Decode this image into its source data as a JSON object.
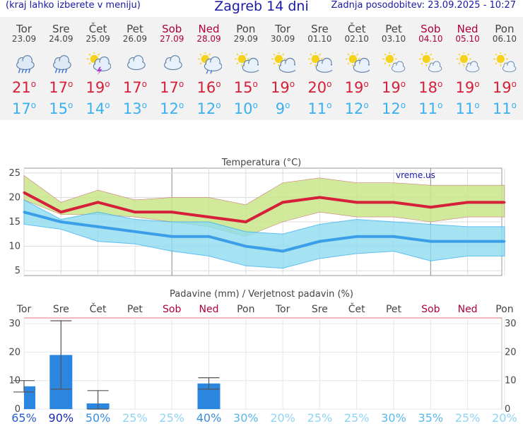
{
  "header": {
    "left": "(kraj lahko izberete v meniju)",
    "title": "Zagreb 14 dni",
    "right": "Zadnja posodobitev: 23.09.2025 - 10:27"
  },
  "days": [
    {
      "name": "Tor",
      "date": "23.09",
      "icon": "rain-cloud-icon",
      "tmax": "21",
      "tmin": "17",
      "weekend": false
    },
    {
      "name": "Sre",
      "date": "24.09",
      "icon": "rain-cloud-icon",
      "tmax": "17",
      "tmin": "15",
      "weekend": false
    },
    {
      "name": "Čet",
      "date": "25.09",
      "icon": "thunder-sun-cloud-icon",
      "tmax": "19",
      "tmin": "14",
      "weekend": false
    },
    {
      "name": "Pet",
      "date": "26.09",
      "icon": "cloud-icon",
      "tmax": "17",
      "tmin": "13",
      "weekend": false
    },
    {
      "name": "Sob",
      "date": "27.09",
      "icon": "cloud-icon",
      "tmax": "17",
      "tmin": "12",
      "weekend": true
    },
    {
      "name": "Ned",
      "date": "28.09",
      "icon": "sun-cloud-rain-icon",
      "tmax": "16",
      "tmin": "12",
      "weekend": true
    },
    {
      "name": "Pon",
      "date": "29.09",
      "icon": "sun-cloud-icon",
      "tmax": "15",
      "tmin": "10",
      "weekend": false
    },
    {
      "name": "Tor",
      "date": "30.09",
      "icon": "sun-cloud-icon",
      "tmax": "19",
      "tmin": "9",
      "weekend": false
    },
    {
      "name": "Sre",
      "date": "01.10",
      "icon": "sun-cloud-icon",
      "tmax": "20",
      "tmin": "11",
      "weekend": false
    },
    {
      "name": "Čet",
      "date": "02.10",
      "icon": "sun-cloud-icon",
      "tmax": "19",
      "tmin": "12",
      "weekend": false
    },
    {
      "name": "Pet",
      "date": "03.10",
      "icon": "sun-partly-cloud-icon",
      "tmax": "19",
      "tmin": "12",
      "weekend": false
    },
    {
      "name": "Sob",
      "date": "04.10",
      "icon": "sun-partly-cloud-icon",
      "tmax": "18",
      "tmin": "11",
      "weekend": true
    },
    {
      "name": "Ned",
      "date": "05.10",
      "icon": "sun-partly-cloud-icon",
      "tmax": "19",
      "tmin": "11",
      "weekend": true
    },
    {
      "name": "Pon",
      "date": "06.10",
      "icon": "sun-partly-cloud-icon",
      "tmax": "19",
      "tmin": "11",
      "weekend": false
    }
  ],
  "colors": {
    "max": "#d6203a",
    "min": "#3ab0f0",
    "weekend": "#b0003a",
    "bar": "#2b86e0",
    "text": "#1a1aa6"
  },
  "chart_data": [
    {
      "type": "line",
      "title": "Temperatura (°C)",
      "watermark": "vreme.us",
      "ylim": [
        4,
        26
      ],
      "yticks": [
        5,
        10,
        15,
        20,
        25
      ],
      "x": [
        "Tor",
        "Sre",
        "Čet",
        "Pet",
        "Sob",
        "Ned",
        "Pon",
        "Tor",
        "Sre",
        "Čet",
        "Pet",
        "Sob",
        "Ned",
        "Pon"
      ],
      "series": [
        {
          "values": [
            21,
            17,
            19,
            17,
            17,
            16,
            15,
            19,
            20,
            19,
            19,
            18,
            19,
            19
          ]
        },
        {
          "values": [
            17,
            15,
            14,
            13,
            12,
            12,
            10,
            9,
            11,
            12,
            12,
            11,
            11,
            11
          ]
        }
      ],
      "max_band_upper": [
        24.5,
        19,
        21.5,
        19.5,
        20,
        20,
        18.5,
        23,
        24,
        23,
        23,
        22.5,
        22.5,
        22.5
      ],
      "max_band_lower": [
        19.5,
        16.5,
        16.5,
        16,
        15,
        14,
        12,
        15,
        17,
        16,
        16,
        15,
        16,
        16
      ],
      "min_band_upper": [
        19.5,
        15.5,
        17,
        15.5,
        15,
        15,
        13,
        12.5,
        14.5,
        15.5,
        15,
        14.5,
        14,
        14
      ],
      "min_band_lower": [
        14.5,
        13.5,
        11,
        10.5,
        9,
        8,
        6,
        5.5,
        7.5,
        8.5,
        9,
        7,
        8,
        8
      ]
    },
    {
      "type": "bar",
      "title": "Padavine (mm) / Verjetnost padavin (%)",
      "ylim": [
        0,
        32
      ],
      "yticks": [
        0,
        10,
        20,
        30
      ],
      "categories": [
        "Tor",
        "Sre",
        "Čet",
        "Pet",
        "Sob",
        "Ned",
        "Pon",
        "Tor",
        "Sre",
        "Čet",
        "Pet",
        "Sob",
        "Ned",
        "Pon"
      ],
      "values": [
        8,
        19,
        2,
        0,
        0,
        9,
        0,
        0,
        0,
        0,
        0,
        0,
        0,
        0
      ],
      "range_low": [
        6,
        7,
        0,
        0,
        0,
        7,
        0,
        0,
        0,
        0,
        0,
        0,
        0,
        0
      ],
      "range_high": [
        10,
        31,
        6.5,
        0,
        0,
        11,
        0,
        0,
        0,
        0,
        0,
        0,
        0,
        0
      ],
      "probability": [
        "65%",
        "90%",
        "50%",
        "25%",
        "25%",
        "40%",
        "30%",
        "20%",
        "25%",
        "25%",
        "30%",
        "35%",
        "25%",
        "20%"
      ]
    }
  ]
}
